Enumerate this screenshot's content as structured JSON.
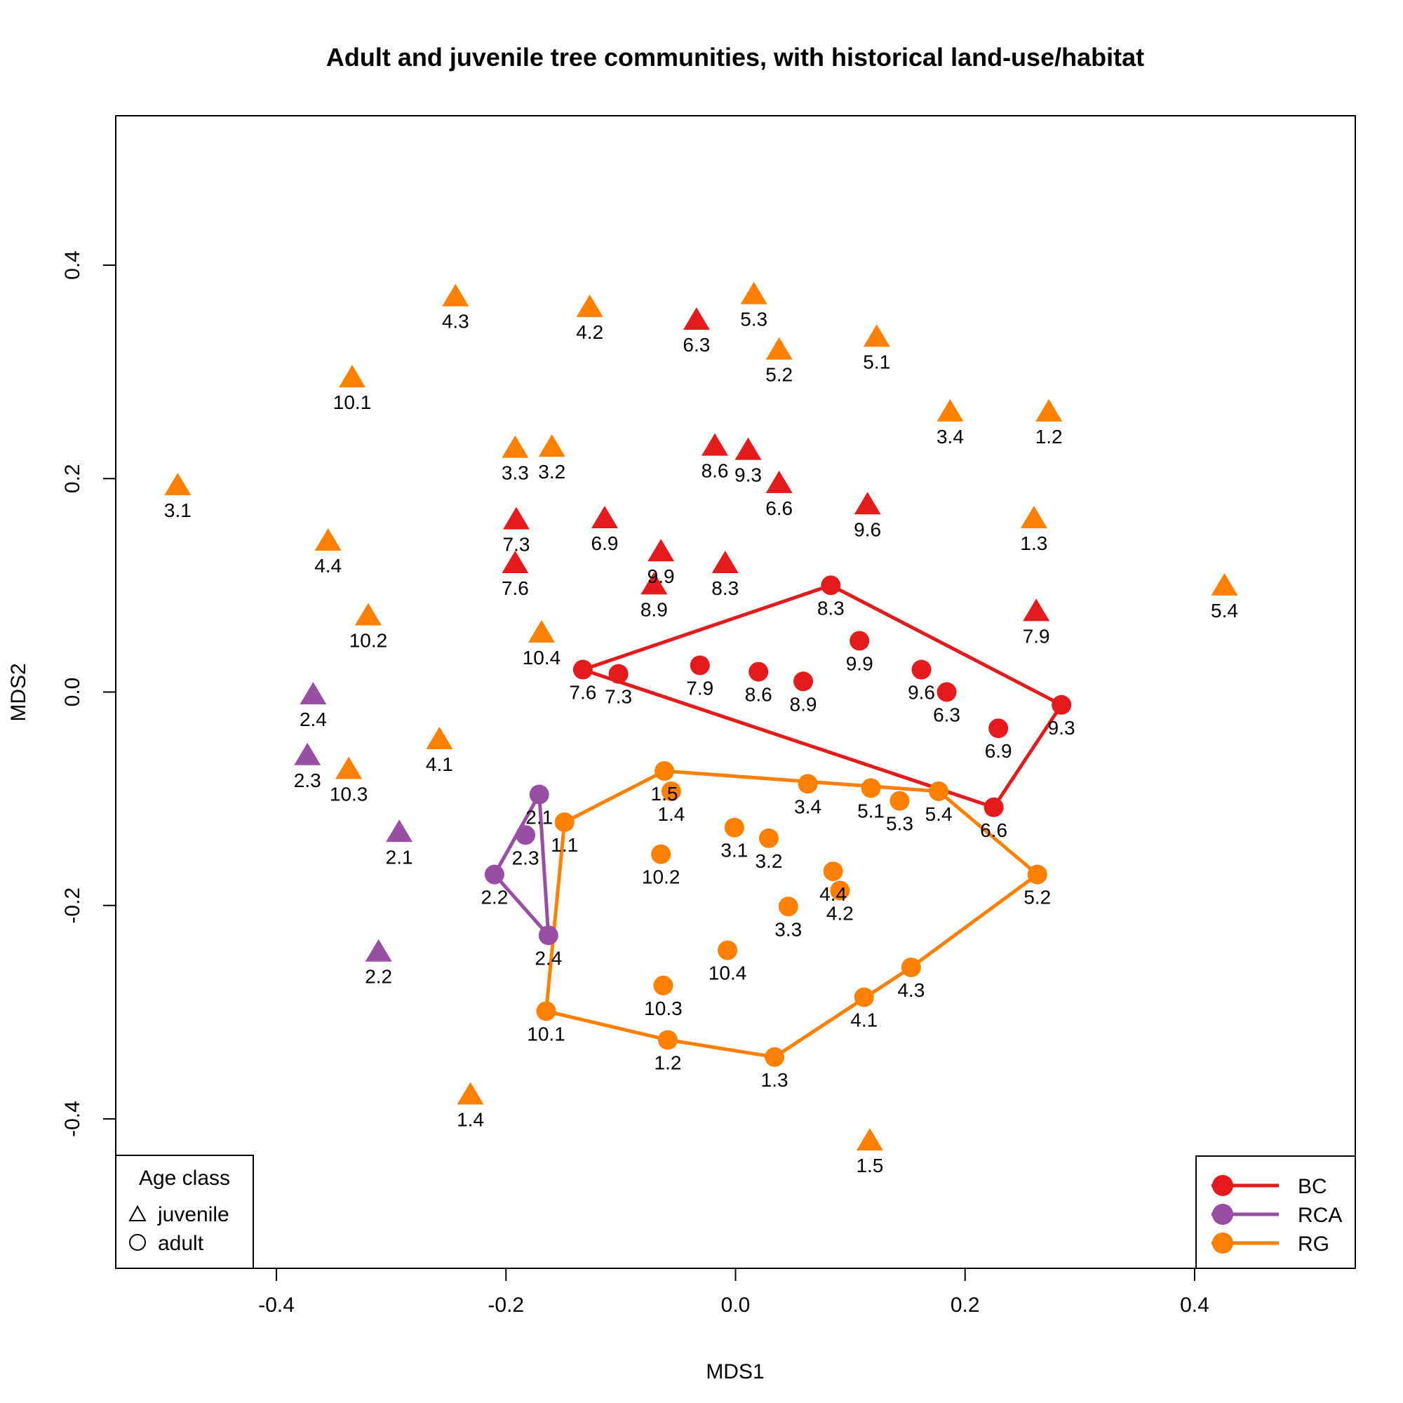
{
  "chart_data": {
    "type": "scatter",
    "title": "Adult and juvenile tree communities, with historical land-use/habitat",
    "xlabel": "MDS1",
    "ylabel": "MDS2",
    "xlim": [
      -0.54,
      0.54
    ],
    "ylim": [
      -0.54,
      0.54
    ],
    "x_ticks": [
      -0.4,
      -0.2,
      0.0,
      0.2,
      0.4
    ],
    "y_ticks": [
      -0.4,
      -0.2,
      0.0,
      0.2,
      0.4
    ],
    "x_tick_labels": [
      "-0.4",
      "-0.2",
      "0.0",
      "0.2",
      "0.4"
    ],
    "y_tick_labels": [
      "-0.4",
      "-0.2",
      "0.0",
      "0.2",
      "0.4"
    ],
    "grid": false,
    "colors": {
      "BC": "#e41a1c",
      "RCA": "#984ea3",
      "RG": "#ff7f00"
    },
    "series": [
      {
        "name": "BC",
        "age": "adult",
        "hull": true,
        "points": [
          {
            "label": "7.6",
            "x": -0.133,
            "y": 0.021
          },
          {
            "label": "7.3",
            "x": -0.102,
            "y": 0.017
          },
          {
            "label": "7.9",
            "x": -0.031,
            "y": 0.025
          },
          {
            "label": "8.6",
            "x": 0.02,
            "y": 0.019
          },
          {
            "label": "8.9",
            "x": 0.059,
            "y": 0.01
          },
          {
            "label": "8.3",
            "x": 0.083,
            "y": 0.1
          },
          {
            "label": "9.9",
            "x": 0.108,
            "y": 0.048
          },
          {
            "label": "9.6",
            "x": 0.162,
            "y": 0.021
          },
          {
            "label": "6.3",
            "x": 0.184,
            "y": 0.0
          },
          {
            "label": "9.3",
            "x": 0.284,
            "y": -0.012
          },
          {
            "label": "6.9",
            "x": 0.229,
            "y": -0.034
          },
          {
            "label": "6.6",
            "x": 0.225,
            "y": -0.108
          }
        ]
      },
      {
        "name": "RCA",
        "age": "adult",
        "hull": true,
        "points": [
          {
            "label": "2.1",
            "x": -0.171,
            "y": -0.096
          },
          {
            "label": "2.3",
            "x": -0.183,
            "y": -0.134
          },
          {
            "label": "2.2",
            "x": -0.21,
            "y": -0.171
          },
          {
            "label": "2.4",
            "x": -0.163,
            "y": -0.228
          }
        ]
      },
      {
        "name": "RG",
        "age": "adult",
        "hull": true,
        "points": [
          {
            "label": "1.1",
            "x": -0.149,
            "y": -0.122
          },
          {
            "label": "1.5",
            "x": -0.062,
            "y": -0.074
          },
          {
            "label": "1.4",
            "x": -0.056,
            "y": -0.093
          },
          {
            "label": "3.4",
            "x": 0.063,
            "y": -0.086
          },
          {
            "label": "5.1",
            "x": 0.118,
            "y": -0.09
          },
          {
            "label": "5.3",
            "x": 0.143,
            "y": -0.102
          },
          {
            "label": "5.4",
            "x": 0.177,
            "y": -0.093
          },
          {
            "label": "5.2",
            "x": 0.263,
            "y": -0.171
          },
          {
            "label": "3.1",
            "x": -0.001,
            "y": -0.127
          },
          {
            "label": "3.2",
            "x": 0.029,
            "y": -0.137
          },
          {
            "label": "10.2",
            "x": -0.065,
            "y": -0.152
          },
          {
            "label": "4.4",
            "x": 0.085,
            "y": -0.168
          },
          {
            "label": "4.2",
            "x": 0.091,
            "y": -0.186
          },
          {
            "label": "3.3",
            "x": 0.046,
            "y": -0.201
          },
          {
            "label": "10.4",
            "x": -0.007,
            "y": -0.242
          },
          {
            "label": "4.3",
            "x": 0.153,
            "y": -0.258
          },
          {
            "label": "4.1",
            "x": 0.112,
            "y": -0.286
          },
          {
            "label": "10.3",
            "x": -0.063,
            "y": -0.275
          },
          {
            "label": "10.1",
            "x": -0.165,
            "y": -0.299
          },
          {
            "label": "1.2",
            "x": -0.059,
            "y": -0.326
          },
          {
            "label": "1.3",
            "x": 0.034,
            "y": -0.342
          }
        ]
      },
      {
        "name": "BC",
        "age": "juvenile",
        "hull": false,
        "points": [
          {
            "label": "6.3",
            "x": -0.034,
            "y": 0.348
          },
          {
            "label": "8.6",
            "x": -0.018,
            "y": 0.23
          },
          {
            "label": "9.3",
            "x": 0.011,
            "y": 0.226
          },
          {
            "label": "6.6",
            "x": 0.038,
            "y": 0.195
          },
          {
            "label": "9.6",
            "x": 0.115,
            "y": 0.175
          },
          {
            "label": "7.3",
            "x": -0.191,
            "y": 0.161
          },
          {
            "label": "6.9",
            "x": -0.114,
            "y": 0.162
          },
          {
            "label": "9.9",
            "x": -0.065,
            "y": 0.131
          },
          {
            "label": "7.6",
            "x": -0.192,
            "y": 0.12
          },
          {
            "label": "8.3",
            "x": -0.009,
            "y": 0.12
          },
          {
            "label": "8.9",
            "x": -0.071,
            "y": 0.1
          },
          {
            "label": "7.9",
            "x": 0.262,
            "y": 0.075
          }
        ]
      },
      {
        "name": "RCA",
        "age": "juvenile",
        "hull": false,
        "points": [
          {
            "label": "2.4",
            "x": -0.368,
            "y": -0.003
          },
          {
            "label": "2.3",
            "x": -0.373,
            "y": -0.06
          },
          {
            "label": "2.1",
            "x": -0.293,
            "y": -0.132
          },
          {
            "label": "2.2",
            "x": -0.311,
            "y": -0.244
          }
        ]
      },
      {
        "name": "RG",
        "age": "juvenile",
        "hull": false,
        "points": [
          {
            "label": "4.3",
            "x": -0.244,
            "y": 0.37
          },
          {
            "label": "4.2",
            "x": -0.127,
            "y": 0.36
          },
          {
            "label": "5.3",
            "x": 0.016,
            "y": 0.372
          },
          {
            "label": "5.2",
            "x": 0.038,
            "y": 0.32
          },
          {
            "label": "5.1",
            "x": 0.123,
            "y": 0.332
          },
          {
            "label": "10.1",
            "x": -0.334,
            "y": 0.294
          },
          {
            "label": "3.4",
            "x": 0.187,
            "y": 0.262
          },
          {
            "label": "1.2",
            "x": 0.273,
            "y": 0.262
          },
          {
            "label": "3.3",
            "x": -0.192,
            "y": 0.228
          },
          {
            "label": "3.2",
            "x": -0.16,
            "y": 0.229
          },
          {
            "label": "3.1",
            "x": -0.486,
            "y": 0.193
          },
          {
            "label": "1.3",
            "x": 0.26,
            "y": 0.162
          },
          {
            "label": "4.4",
            "x": -0.355,
            "y": 0.141
          },
          {
            "label": "5.4",
            "x": 0.426,
            "y": 0.099
          },
          {
            "label": "10.2",
            "x": -0.32,
            "y": 0.071
          },
          {
            "label": "10.4",
            "x": -0.169,
            "y": 0.055
          },
          {
            "label": "4.1",
            "x": -0.258,
            "y": -0.045
          },
          {
            "label": "10.3",
            "x": -0.337,
            "y": -0.073
          },
          {
            "label": "1.4",
            "x": -0.231,
            "y": -0.378
          },
          {
            "label": "1.5",
            "x": 0.117,
            "y": -0.421
          }
        ]
      }
    ],
    "legend_age": {
      "title": "Age class",
      "items": [
        {
          "label": "juvenile",
          "shape": "triangle"
        },
        {
          "label": "adult",
          "shape": "circle"
        }
      ],
      "position": "bottom-left"
    },
    "legend_habitat": {
      "items": [
        {
          "label": "BC",
          "color": "#e41a1c"
        },
        {
          "label": "RCA",
          "color": "#984ea3"
        },
        {
          "label": "RG",
          "color": "#ff7f00"
        }
      ],
      "position": "bottom-right"
    }
  }
}
